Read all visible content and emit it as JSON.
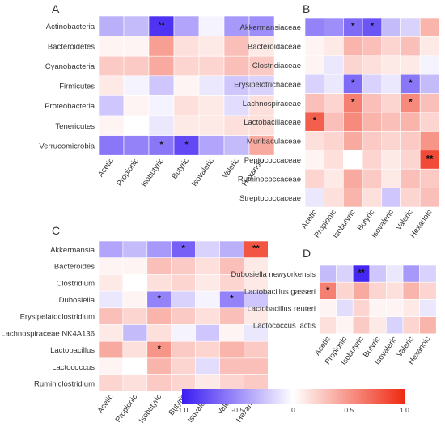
{
  "chart_data": [
    {
      "type": "heatmap",
      "panel": "A",
      "rows": [
        "Actinobacteria",
        "Bacteroidetes",
        "Cyanobacteria",
        "Firmicutes",
        "Proteobacteria",
        "Tenericutes",
        "Verrucomicrobia"
      ],
      "columns": [
        "Acetic",
        "Propionic",
        "Isobutyric",
        "Butyric",
        "Isovaleric",
        "Valeric",
        "Hexanoic"
      ],
      "values": [
        [
          -0.35,
          -0.3,
          -0.9,
          -0.4,
          -0.05,
          -0.45,
          -0.5
        ],
        [
          0.05,
          0.05,
          0.45,
          0.15,
          0.1,
          0.3,
          0.1
        ],
        [
          0.25,
          0.25,
          0.4,
          0.2,
          0.2,
          0.3,
          0.25
        ],
        [
          0.1,
          -0.05,
          -0.25,
          0.05,
          -0.1,
          -0.25,
          -0.2
        ],
        [
          -0.25,
          0.05,
          -0.05,
          0.15,
          0.1,
          -0.15,
          0.15
        ],
        [
          0.05,
          0.0,
          -0.1,
          0.1,
          0.1,
          0.15,
          0.15
        ],
        [
          -0.6,
          -0.55,
          -0.6,
          -0.8,
          -0.4,
          -0.3,
          0.4
        ]
      ],
      "significance": [
        [
          "",
          "",
          "**",
          "",
          "",
          "",
          ""
        ],
        [
          "",
          "",
          "",
          "",
          "",
          "",
          ""
        ],
        [
          "",
          "",
          "",
          "",
          "",
          "",
          ""
        ],
        [
          "",
          "",
          "",
          "",
          "",
          "",
          ""
        ],
        [
          "",
          "",
          "",
          "",
          "",
          "",
          ""
        ],
        [
          "",
          "",
          "",
          "",
          "",
          "",
          ""
        ],
        [
          "",
          "",
          "*",
          "*",
          "",
          "",
          ""
        ]
      ]
    },
    {
      "type": "heatmap",
      "panel": "B",
      "rows": [
        "Akkermansiaceae",
        "Bacteroidaceae",
        "Clostridiaceae",
        "Erysipelotrichaceae",
        "Lachnospiraceae",
        "Lactobacillaceae",
        "Muribaculaceae",
        "Peptococcaceae",
        "Ruminococcaceae",
        "Streptococcaceae"
      ],
      "columns": [
        "Acetic",
        "Propionic",
        "Isobutyric",
        "Butyric",
        "Isovaleric",
        "Valeric",
        "Hexanoic"
      ],
      "values": [
        [
          -0.55,
          -0.5,
          -0.65,
          -0.75,
          -0.3,
          -0.2,
          0.35
        ],
        [
          0.05,
          0.1,
          0.35,
          0.3,
          0.2,
          0.3,
          0.1
        ],
        [
          0.05,
          -0.1,
          0.2,
          0.15,
          0.1,
          0.1,
          -0.05
        ],
        [
          -0.2,
          -0.1,
          -0.65,
          -0.2,
          -0.1,
          -0.6,
          -0.3
        ],
        [
          0.3,
          0.2,
          0.6,
          0.3,
          0.2,
          0.55,
          0.3
        ],
        [
          0.75,
          0.3,
          0.55,
          0.35,
          0.3,
          0.35,
          0.2
        ],
        [
          0.15,
          0.2,
          0.4,
          0.25,
          0.2,
          0.25,
          0.5
        ],
        [
          0.05,
          0.15,
          0.0,
          0.2,
          0.1,
          0.2,
          0.85
        ],
        [
          0.2,
          0.1,
          0.4,
          0.25,
          0.1,
          0.3,
          0.25
        ],
        [
          -0.1,
          0.15,
          0.35,
          0.15,
          -0.25,
          0.2,
          0.3
        ]
      ],
      "significance": [
        [
          "",
          "",
          "*",
          "*",
          "",
          "",
          ""
        ],
        [
          "",
          "",
          "",
          "",
          "",
          "",
          ""
        ],
        [
          "",
          "",
          "",
          "",
          "",
          "",
          ""
        ],
        [
          "",
          "",
          "*",
          "",
          "",
          "*",
          ""
        ],
        [
          "",
          "",
          "*",
          "",
          "",
          "*",
          ""
        ],
        [
          "*",
          "",
          "",
          "",
          "",
          "",
          ""
        ],
        [
          "",
          "",
          "",
          "",
          "",
          "",
          ""
        ],
        [
          "",
          "",
          "",
          "",
          "",
          "",
          "**"
        ],
        [
          "",
          "",
          "",
          "",
          "",
          "",
          ""
        ],
        [
          "",
          "",
          "",
          "",
          "",
          "",
          ""
        ]
      ]
    },
    {
      "type": "heatmap",
      "panel": "C",
      "rows": [
        "Akkermansia",
        "Bacteroides",
        "Clostridium",
        "Dubosiella",
        "Erysipelatoclostridium",
        "Lachnospiraceae NK4A136",
        "Lactobacillus",
        "Lactococcus",
        "Ruminiclostridium"
      ],
      "columns": [
        "Acetic",
        "Propionic",
        "Isobutyric",
        "Butyric",
        "Isovaleric",
        "Valeric",
        "Hexanoic"
      ],
      "values": [
        [
          -0.4,
          -0.3,
          -0.45,
          -0.7,
          -0.2,
          -0.35,
          0.8
        ],
        [
          0.05,
          0.05,
          0.3,
          0.25,
          0.15,
          0.3,
          0.1
        ],
        [
          0.1,
          0.0,
          0.15,
          0.2,
          0.1,
          0.2,
          0.1
        ],
        [
          -0.1,
          0.05,
          -0.55,
          -0.2,
          -0.05,
          -0.55,
          -0.25
        ],
        [
          0.3,
          0.2,
          0.35,
          0.25,
          0.15,
          0.3,
          0.1
        ],
        [
          0.1,
          -0.3,
          0.15,
          -0.05,
          -0.25,
          0.05,
          -0.1
        ],
        [
          0.4,
          0.15,
          0.5,
          0.25,
          0.2,
          0.35,
          0.25
        ],
        [
          0.05,
          0.0,
          0.35,
          0.2,
          -0.15,
          0.3,
          0.3
        ],
        [
          0.2,
          0.15,
          0.25,
          0.2,
          0.1,
          0.2,
          0.25
        ]
      ],
      "significance": [
        [
          "",
          "",
          "",
          "*",
          "",
          "",
          "**"
        ],
        [
          "",
          "",
          "",
          "",
          "",
          "",
          ""
        ],
        [
          "",
          "",
          "",
          "",
          "",
          "",
          ""
        ],
        [
          "",
          "",
          "*",
          "",
          "",
          "*",
          ""
        ],
        [
          "",
          "",
          "",
          "",
          "",
          "",
          ""
        ],
        [
          "",
          "",
          "",
          "",
          "",
          "",
          ""
        ],
        [
          "",
          "",
          "*",
          "",
          "",
          "",
          ""
        ],
        [
          "",
          "",
          "",
          "",
          "",
          "",
          ""
        ],
        [
          "",
          "",
          "",
          "",
          "",
          "",
          ""
        ]
      ]
    },
    {
      "type": "heatmap",
      "panel": "D",
      "rows": [
        "Dubosiella newyorkensis",
        "Lactobacillus gasseri",
        "Lactobacillus reuteri",
        "Lactococcus lactis"
      ],
      "columns": [
        "Acetic",
        "Propionic",
        "Isobutyric",
        "Butyric",
        "Isovaleric",
        "Valeric",
        "Hexanoic"
      ],
      "values": [
        [
          -0.3,
          -0.2,
          -0.95,
          -0.25,
          -0.1,
          -0.45,
          -0.2
        ],
        [
          0.6,
          0.2,
          0.4,
          0.2,
          0.15,
          0.35,
          0.2
        ],
        [
          0.05,
          -0.15,
          0.2,
          0.05,
          0.05,
          0.1,
          -0.1
        ],
        [
          0.15,
          0.05,
          0.25,
          0.1,
          -0.2,
          0.2,
          0.35
        ]
      ],
      "significance": [
        [
          "",
          "",
          "**",
          "",
          "",
          "",
          ""
        ],
        [
          "*",
          "",
          "",
          "",
          "",
          "",
          ""
        ],
        [
          "",
          "",
          "",
          "",
          "",
          "",
          ""
        ],
        [
          "",
          "",
          "",
          "",
          "",
          "",
          ""
        ]
      ]
    }
  ],
  "legend": {
    "ticks": [
      -1.0,
      -0.5,
      0,
      0.5,
      1.0
    ],
    "tick_labels": [
      "-1.0",
      "-0.5",
      "0",
      "0.5",
      "1.0"
    ],
    "colors": {
      "negative": "#3b1cf2",
      "neutral": "#ffffff",
      "positive": "#ef2a12"
    }
  }
}
